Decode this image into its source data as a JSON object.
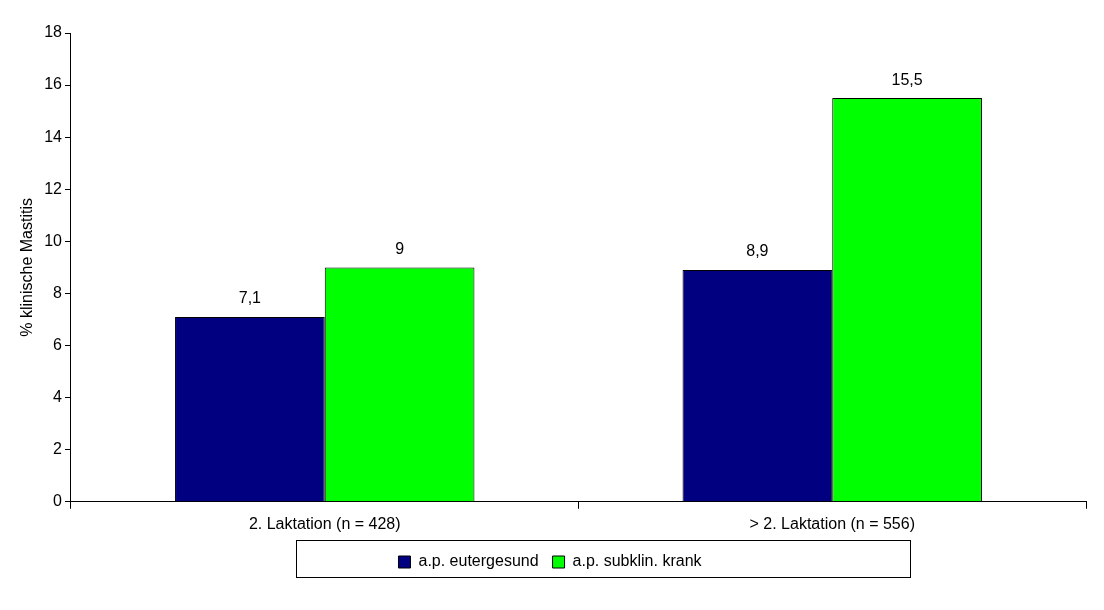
{
  "chart_data": {
    "type": "bar",
    "ylabel": "% klinische Mastitis",
    "categories": [
      "2. Laktation (n = 428)",
      "> 2. Laktation (n = 556)"
    ],
    "series": [
      {
        "name": "a.p. eutergesund",
        "color": "#000080",
        "values": [
          7.1,
          8.9
        ],
        "value_labels": [
          "7,1",
          "8,9"
        ]
      },
      {
        "name": "a.p. subklin. krank",
        "color": "#00ff00",
        "values": [
          9,
          15.5
        ],
        "value_labels": [
          "9",
          "15,5"
        ]
      }
    ],
    "ylim": [
      0,
      18
    ],
    "yticks": [
      0,
      2,
      4,
      6,
      8,
      10,
      12,
      14,
      16,
      18
    ],
    "grid": false,
    "legend": "bottom"
  }
}
